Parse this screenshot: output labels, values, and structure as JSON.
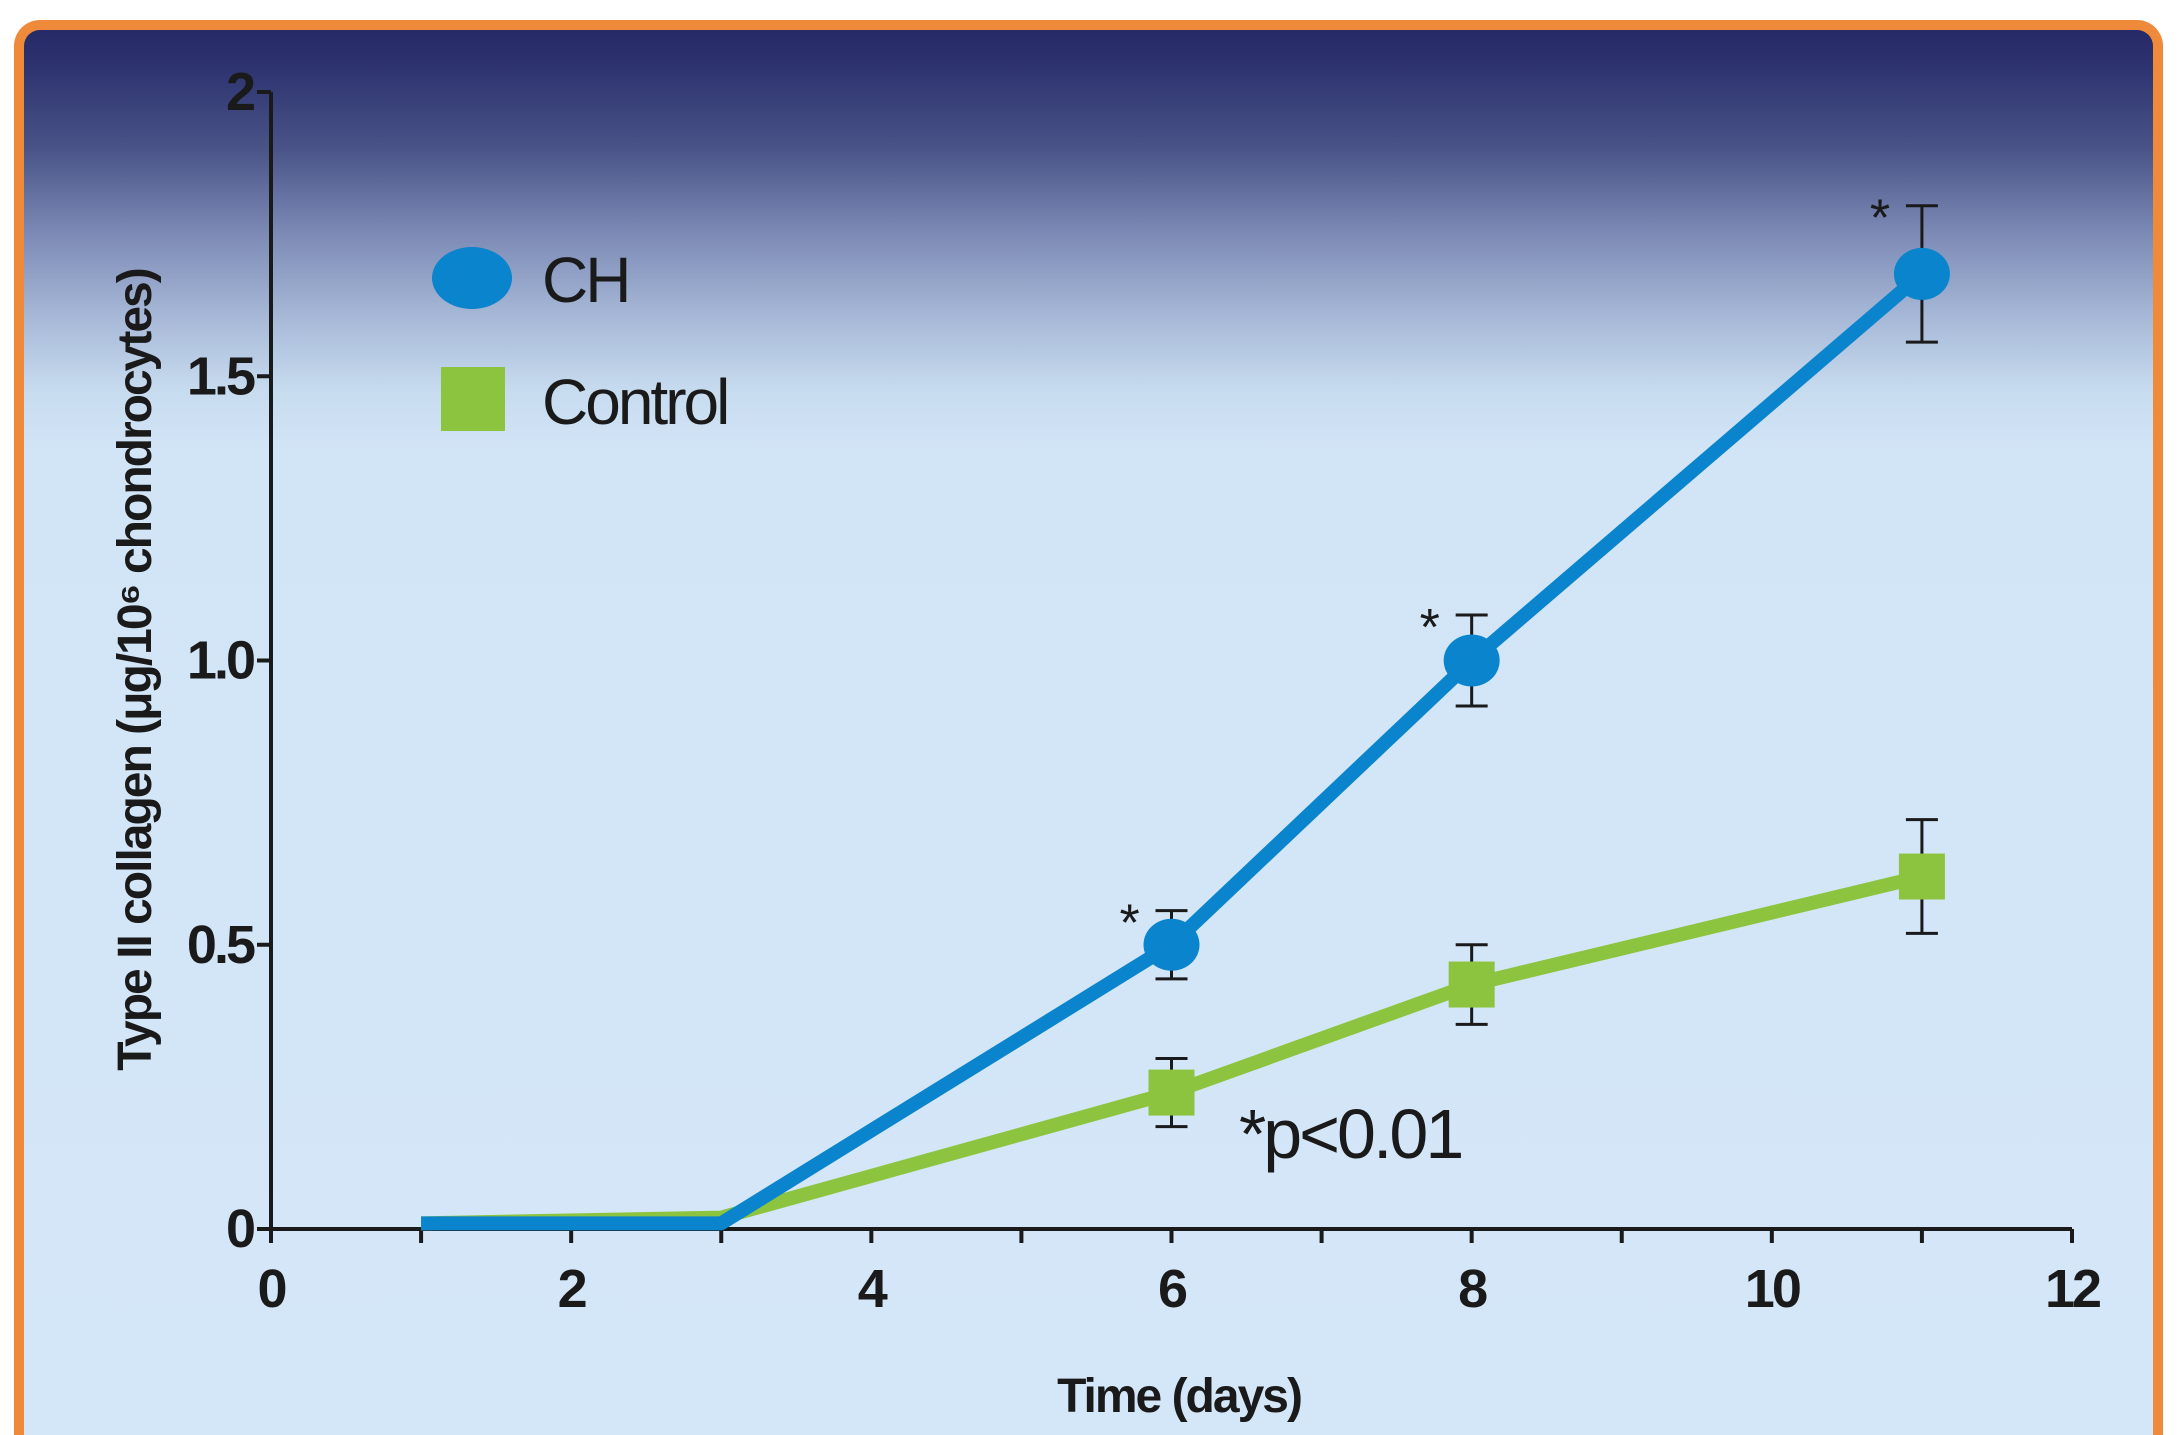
{
  "chart_data": {
    "type": "line",
    "title": "",
    "xlabel": "Time (days)",
    "ylabel": "Type II collagen (μg/10⁶ chondrocytes)",
    "xlim": [
      0,
      12
    ],
    "ylim": [
      0,
      2
    ],
    "x_ticks": [
      0,
      2,
      4,
      6,
      8,
      10,
      12
    ],
    "x_tick_labels": [
      "0",
      "2",
      "4",
      "6",
      "8",
      "10",
      "12"
    ],
    "y_ticks": [
      0,
      0.5,
      1.0,
      1.5,
      2
    ],
    "y_tick_labels": [
      "0",
      "0.5",
      "1.0",
      "1.5",
      "2"
    ],
    "grid": false,
    "legend_position": "top-left",
    "series": [
      {
        "name": "CH",
        "color": "#0a84cc",
        "marker": "circle",
        "x": [
          1,
          3,
          6,
          8,
          11
        ],
        "y": [
          0.01,
          0.01,
          0.5,
          1.0,
          1.68
        ],
        "error": [
          null,
          null,
          0.06,
          0.08,
          0.12
        ],
        "significant": [
          false,
          false,
          true,
          true,
          true
        ]
      },
      {
        "name": "Control",
        "color": "#8cc43f",
        "marker": "square",
        "x": [
          1,
          3,
          6,
          8,
          11
        ],
        "y": [
          0.01,
          0.02,
          0.24,
          0.43,
          0.62
        ],
        "error": [
          null,
          null,
          0.06,
          0.07,
          0.1
        ],
        "significant": [
          false,
          false,
          false,
          false,
          false
        ]
      }
    ],
    "star_symbol": "*",
    "annotation": "*p<0.01"
  },
  "colors": {
    "frame": "#ee8a3a",
    "axis": "#1a1a1a"
  }
}
